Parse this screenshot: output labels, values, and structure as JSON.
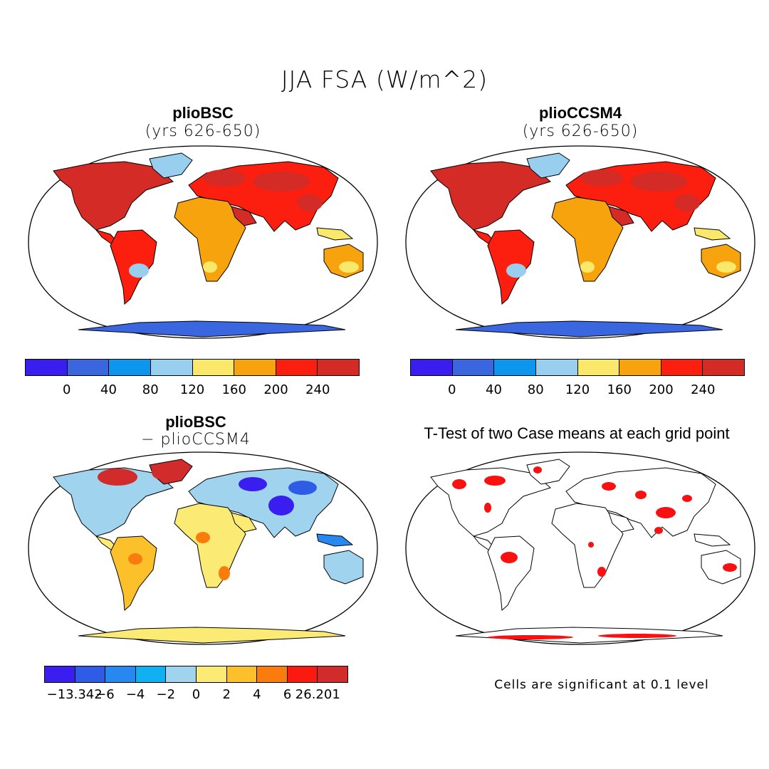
{
  "title": "JJA FSA (W/m^2)",
  "panels": {
    "top_left": {
      "title": "plioBSC",
      "subtitle": "(yrs 626-650)"
    },
    "top_right": {
      "title": "plioCCSM4",
      "subtitle": "(yrs 626-650)"
    },
    "bottom_left": {
      "title": "plioBSC",
      "subtitle": "− plioCCSM4"
    },
    "bottom_right": {
      "title": "T-Test of two Case means at each grid point",
      "note": "Cells are significant at 0.1 level"
    }
  },
  "colorbars": {
    "absolute": {
      "colors": [
        "#3a1ef0",
        "#3a66e0",
        "#0d96ee",
        "#98cfee",
        "#fae86a",
        "#f7a30d",
        "#fc1e0f",
        "#d42b27"
      ],
      "labels": [
        "0",
        "40",
        "80",
        "120",
        "160",
        "200",
        "240"
      ]
    },
    "difference": {
      "colors": [
        "#3a1ef0",
        "#2f5ce6",
        "#2788f0",
        "#10b0f2",
        "#9fd3ee",
        "#fbeb74",
        "#fbc02a",
        "#fa7c0c",
        "#fb1a10",
        "#d12b2b"
      ],
      "labels": [
        "−13.342",
        "−6",
        "−4",
        "−2",
        "0",
        "2",
        "4",
        "6",
        "26.201"
      ]
    }
  },
  "colors": {
    "significance": "#fa1010",
    "land_outline": "#000000"
  }
}
